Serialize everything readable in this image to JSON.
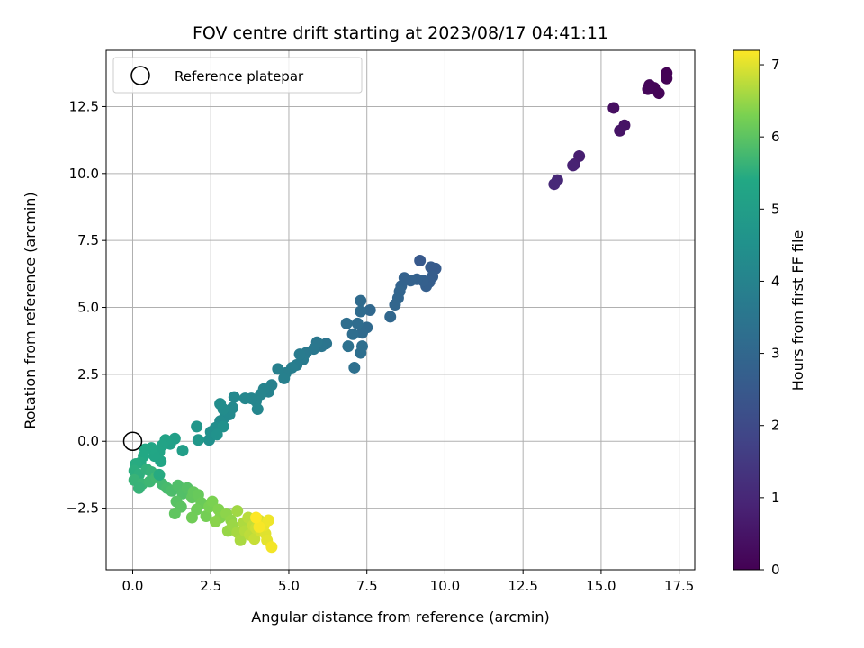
{
  "chart_data": {
    "type": "scatter",
    "title": "FOV centre drift starting at 2023/08/17 04:41:11",
    "xlabel": "Angular distance from reference (arcmin)",
    "ylabel": "Rotation from reference (arcmin)",
    "xlim": [
      -0.85,
      18.0
    ],
    "ylim": [
      -4.8,
      14.6
    ],
    "xticks": [
      0.0,
      2.5,
      5.0,
      7.5,
      10.0,
      12.5,
      15.0,
      17.5
    ],
    "yticks": [
      -2.5,
      0.0,
      2.5,
      5.0,
      7.5,
      10.0,
      12.5
    ],
    "grid": true,
    "legend": {
      "placement": "upper-left",
      "entries": [
        "Reference platepar"
      ]
    },
    "reference_point": {
      "name": "Reference platepar",
      "x": 0.0,
      "y": 0.0
    },
    "colorbar": {
      "label": "Hours from first FF file",
      "colormap": "viridis",
      "range": [
        0,
        7.2
      ],
      "ticks": [
        0,
        1,
        2,
        3,
        4,
        5,
        6,
        7
      ]
    },
    "series": [
      {
        "points": [
          {
            "x": 17.1,
            "y": 13.75,
            "c": 0.02
          },
          {
            "x": 17.1,
            "y": 13.55,
            "c": 0.04
          },
          {
            "x": 16.85,
            "y": 13.0,
            "c": 0.07
          },
          {
            "x": 16.7,
            "y": 13.2,
            "c": 0.09
          },
          {
            "x": 16.55,
            "y": 13.3,
            "c": 0.11
          },
          {
            "x": 16.5,
            "y": 13.15,
            "c": 0.13
          },
          {
            "x": 15.4,
            "y": 12.45,
            "c": 0.35
          },
          {
            "x": 15.75,
            "y": 11.8,
            "c": 0.45
          },
          {
            "x": 15.6,
            "y": 11.6,
            "c": 0.5
          },
          {
            "x": 14.3,
            "y": 10.65,
            "c": 0.75
          },
          {
            "x": 14.15,
            "y": 10.35,
            "c": 0.8
          },
          {
            "x": 14.1,
            "y": 10.3,
            "c": 0.85
          },
          {
            "x": 13.6,
            "y": 9.75,
            "c": 1.0
          },
          {
            "x": 13.5,
            "y": 9.6,
            "c": 1.05
          },
          {
            "x": 9.2,
            "y": 6.75,
            "c": 2.5
          },
          {
            "x": 9.7,
            "y": 6.45,
            "c": 2.55
          },
          {
            "x": 9.55,
            "y": 6.5,
            "c": 2.58
          },
          {
            "x": 9.6,
            "y": 6.15,
            "c": 2.62
          },
          {
            "x": 9.5,
            "y": 5.95,
            "c": 2.66
          },
          {
            "x": 9.4,
            "y": 5.8,
            "c": 2.7
          },
          {
            "x": 9.3,
            "y": 6.0,
            "c": 2.73
          },
          {
            "x": 9.1,
            "y": 6.05,
            "c": 2.76
          },
          {
            "x": 8.9,
            "y": 6.0,
            "c": 2.8
          },
          {
            "x": 8.7,
            "y": 6.1,
            "c": 2.82
          },
          {
            "x": 8.6,
            "y": 5.8,
            "c": 2.86
          },
          {
            "x": 8.55,
            "y": 5.6,
            "c": 2.9
          },
          {
            "x": 8.5,
            "y": 5.35,
            "c": 2.93
          },
          {
            "x": 8.4,
            "y": 5.1,
            "c": 2.96
          },
          {
            "x": 8.25,
            "y": 4.65,
            "c": 3.0
          },
          {
            "x": 7.6,
            "y": 4.9,
            "c": 3.04
          },
          {
            "x": 7.5,
            "y": 4.25,
            "c": 3.07
          },
          {
            "x": 7.35,
            "y": 4.05,
            "c": 3.1
          },
          {
            "x": 7.3,
            "y": 5.25,
            "c": 3.12
          },
          {
            "x": 7.3,
            "y": 4.85,
            "c": 3.14
          },
          {
            "x": 7.2,
            "y": 4.4,
            "c": 3.17
          },
          {
            "x": 7.05,
            "y": 4.0,
            "c": 3.2
          },
          {
            "x": 6.85,
            "y": 4.4,
            "c": 3.23
          },
          {
            "x": 7.35,
            "y": 3.55,
            "c": 3.26
          },
          {
            "x": 7.3,
            "y": 3.3,
            "c": 3.28
          },
          {
            "x": 7.1,
            "y": 2.75,
            "c": 3.3
          },
          {
            "x": 6.9,
            "y": 3.55,
            "c": 3.33
          },
          {
            "x": 6.2,
            "y": 3.65,
            "c": 3.45
          },
          {
            "x": 6.05,
            "y": 3.55,
            "c": 3.5
          },
          {
            "x": 5.9,
            "y": 3.7,
            "c": 3.55
          },
          {
            "x": 5.8,
            "y": 3.45,
            "c": 3.6
          },
          {
            "x": 5.55,
            "y": 3.3,
            "c": 3.65
          },
          {
            "x": 5.45,
            "y": 3.05,
            "c": 3.7
          },
          {
            "x": 5.35,
            "y": 3.25,
            "c": 3.72
          },
          {
            "x": 5.25,
            "y": 2.85,
            "c": 3.76
          },
          {
            "x": 5.1,
            "y": 2.75,
            "c": 3.8
          },
          {
            "x": 4.9,
            "y": 2.55,
            "c": 3.84
          },
          {
            "x": 4.85,
            "y": 2.35,
            "c": 3.88
          },
          {
            "x": 4.65,
            "y": 2.7,
            "c": 3.9
          },
          {
            "x": 4.45,
            "y": 2.1,
            "c": 3.93
          },
          {
            "x": 4.35,
            "y": 1.85,
            "c": 3.96
          },
          {
            "x": 4.2,
            "y": 1.95,
            "c": 4.0
          },
          {
            "x": 4.1,
            "y": 1.75,
            "c": 4.02
          },
          {
            "x": 3.95,
            "y": 1.5,
            "c": 4.05
          },
          {
            "x": 3.8,
            "y": 1.6,
            "c": 4.08
          },
          {
            "x": 4.0,
            "y": 1.2,
            "c": 4.1
          },
          {
            "x": 3.6,
            "y": 1.6,
            "c": 4.13
          },
          {
            "x": 3.25,
            "y": 1.65,
            "c": 4.16
          },
          {
            "x": 3.2,
            "y": 1.25,
            "c": 4.2
          },
          {
            "x": 3.1,
            "y": 1.0,
            "c": 4.23
          },
          {
            "x": 2.95,
            "y": 0.9,
            "c": 4.26
          },
          {
            "x": 2.8,
            "y": 0.75,
            "c": 4.3
          },
          {
            "x": 2.9,
            "y": 1.2,
            "c": 4.33
          },
          {
            "x": 2.8,
            "y": 1.4,
            "c": 4.36
          },
          {
            "x": 2.65,
            "y": 0.5,
            "c": 4.4
          },
          {
            "x": 2.5,
            "y": 0.35,
            "c": 4.43
          },
          {
            "x": 2.45,
            "y": 0.05,
            "c": 4.46
          },
          {
            "x": 2.9,
            "y": 0.55,
            "c": 4.5
          },
          {
            "x": 2.7,
            "y": 0.25,
            "c": 4.55
          },
          {
            "x": 2.05,
            "y": 0.55,
            "c": 4.7
          },
          {
            "x": 2.1,
            "y": 0.05,
            "c": 4.75
          },
          {
            "x": 1.6,
            "y": -0.35,
            "c": 5.0
          },
          {
            "x": 1.35,
            "y": 0.1,
            "c": 5.05
          },
          {
            "x": 1.2,
            "y": -0.1,
            "c": 5.1
          },
          {
            "x": 1.05,
            "y": 0.05,
            "c": 5.15
          },
          {
            "x": 0.95,
            "y": -0.15,
            "c": 5.2
          },
          {
            "x": 0.85,
            "y": -0.4,
            "c": 5.25
          },
          {
            "x": 0.9,
            "y": -0.75,
            "c": 5.28
          },
          {
            "x": 0.7,
            "y": -0.55,
            "c": 5.3
          },
          {
            "x": 0.6,
            "y": -0.25,
            "c": 5.33
          },
          {
            "x": 0.4,
            "y": -0.3,
            "c": 5.36
          },
          {
            "x": 0.35,
            "y": -0.55,
            "c": 5.4
          },
          {
            "x": 0.25,
            "y": -0.8,
            "c": 5.43
          },
          {
            "x": 0.1,
            "y": -0.85,
            "c": 5.46
          },
          {
            "x": 0.05,
            "y": -1.1,
            "c": 5.5
          },
          {
            "x": 0.2,
            "y": -1.25,
            "c": 5.53
          },
          {
            "x": 0.45,
            "y": -1.05,
            "c": 5.56
          },
          {
            "x": 0.6,
            "y": -1.15,
            "c": 5.6
          },
          {
            "x": 0.05,
            "y": -1.45,
            "c": 5.63
          },
          {
            "x": 0.3,
            "y": -1.6,
            "c": 5.66
          },
          {
            "x": 0.55,
            "y": -1.5,
            "c": 5.7
          },
          {
            "x": 0.75,
            "y": -1.35,
            "c": 5.73
          },
          {
            "x": 0.95,
            "y": -1.6,
            "c": 5.76
          },
          {
            "x": 1.1,
            "y": -1.75,
            "c": 5.8
          },
          {
            "x": 0.2,
            "y": -1.75,
            "c": 5.62
          },
          {
            "x": 0.85,
            "y": -1.25,
            "c": 5.45
          },
          {
            "x": 1.25,
            "y": -1.85,
            "c": 5.84
          },
          {
            "x": 1.45,
            "y": -1.65,
            "c": 5.88
          },
          {
            "x": 1.6,
            "y": -1.95,
            "c": 5.9
          },
          {
            "x": 1.75,
            "y": -1.75,
            "c": 5.93
          },
          {
            "x": 1.4,
            "y": -2.25,
            "c": 5.96
          },
          {
            "x": 1.55,
            "y": -2.45,
            "c": 6.0
          },
          {
            "x": 1.35,
            "y": -2.7,
            "c": 6.03
          },
          {
            "x": 1.9,
            "y": -2.1,
            "c": 6.06
          },
          {
            "x": 1.95,
            "y": -1.9,
            "c": 6.08
          },
          {
            "x": 2.1,
            "y": -2.0,
            "c": 6.12
          },
          {
            "x": 2.2,
            "y": -2.3,
            "c": 6.15
          },
          {
            "x": 2.05,
            "y": -2.55,
            "c": 6.18
          },
          {
            "x": 1.9,
            "y": -2.85,
            "c": 6.2
          },
          {
            "x": 2.35,
            "y": -2.8,
            "c": 6.24
          },
          {
            "x": 2.45,
            "y": -2.45,
            "c": 6.27
          },
          {
            "x": 2.55,
            "y": -2.25,
            "c": 6.3
          },
          {
            "x": 2.75,
            "y": -2.55,
            "c": 6.34
          },
          {
            "x": 2.8,
            "y": -2.85,
            "c": 6.36
          },
          {
            "x": 2.65,
            "y": -3.0,
            "c": 6.4
          },
          {
            "x": 3.0,
            "y": -2.7,
            "c": 6.43
          },
          {
            "x": 3.15,
            "y": -2.95,
            "c": 6.46
          },
          {
            "x": 3.05,
            "y": -3.35,
            "c": 6.5
          },
          {
            "x": 3.2,
            "y": -3.15,
            "c": 6.53
          },
          {
            "x": 3.35,
            "y": -2.6,
            "c": 6.56
          },
          {
            "x": 3.35,
            "y": -3.4,
            "c": 6.6
          },
          {
            "x": 3.45,
            "y": -3.7,
            "c": 6.63
          },
          {
            "x": 3.55,
            "y": -3.05,
            "c": 6.66
          },
          {
            "x": 3.6,
            "y": -3.35,
            "c": 6.7
          },
          {
            "x": 3.7,
            "y": -2.85,
            "c": 6.73
          },
          {
            "x": 3.75,
            "y": -3.5,
            "c": 6.76
          },
          {
            "x": 3.85,
            "y": -3.15,
            "c": 6.8
          },
          {
            "x": 3.9,
            "y": -3.65,
            "c": 6.83
          },
          {
            "x": 3.95,
            "y": -3.25,
            "c": 6.86
          },
          {
            "x": 4.05,
            "y": -2.95,
            "c": 6.9
          },
          {
            "x": 4.1,
            "y": -3.35,
            "c": 6.93
          },
          {
            "x": 4.15,
            "y": -3.05,
            "c": 6.96
          },
          {
            "x": 4.25,
            "y": -3.45,
            "c": 7.0
          },
          {
            "x": 4.3,
            "y": -3.7,
            "c": 7.03
          },
          {
            "x": 4.2,
            "y": -3.15,
            "c": 7.06
          },
          {
            "x": 4.35,
            "y": -2.95,
            "c": 7.1
          },
          {
            "x": 4.45,
            "y": -3.95,
            "c": 7.13
          },
          {
            "x": 4.05,
            "y": -3.2,
            "c": 7.16
          },
          {
            "x": 3.95,
            "y": -2.85,
            "c": 7.2
          }
        ]
      }
    ]
  }
}
